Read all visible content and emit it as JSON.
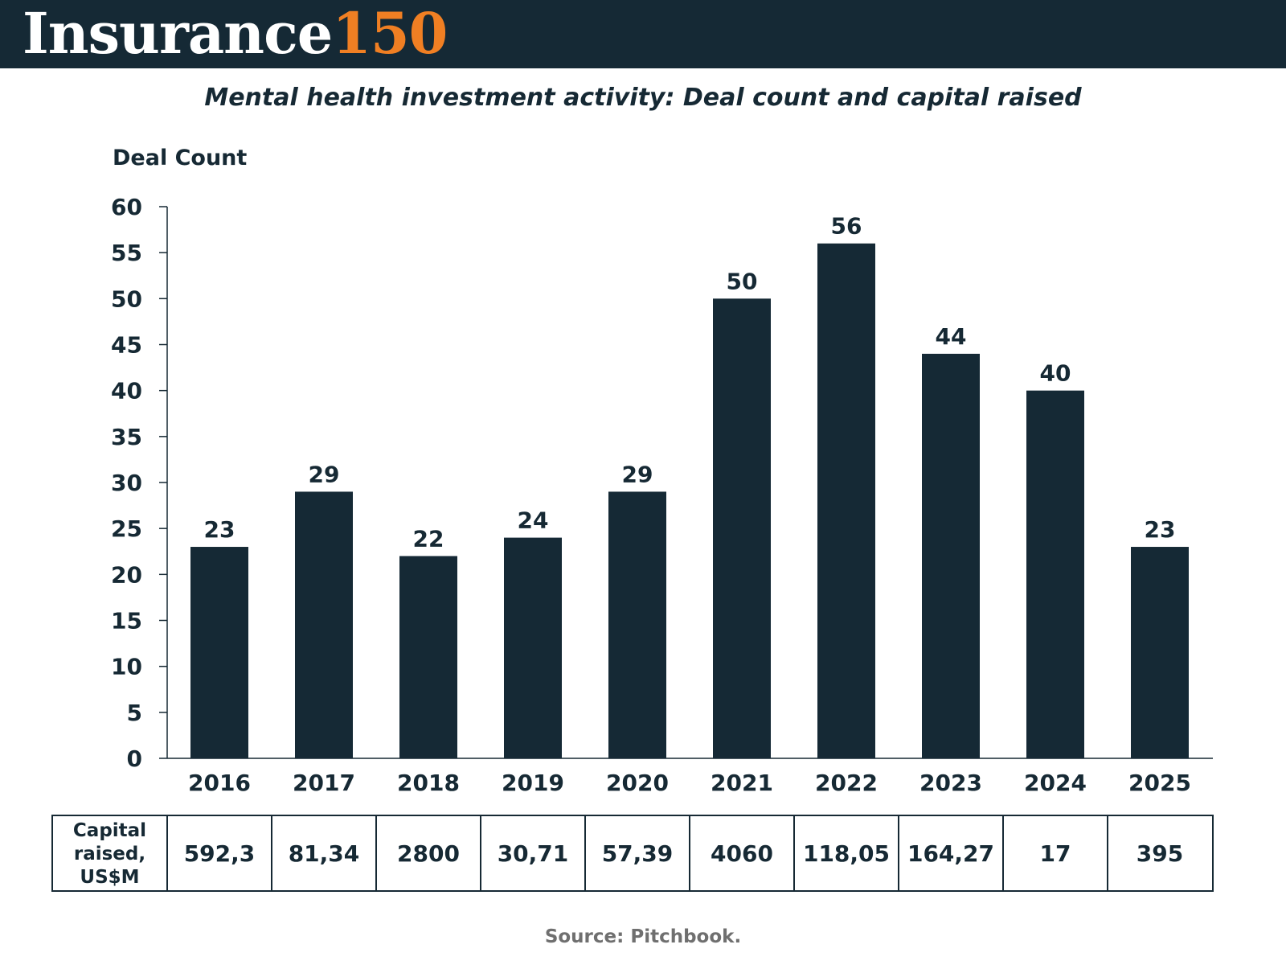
{
  "header": {
    "logo_word": "Insurance",
    "logo_number": "150",
    "background_color": "#152935",
    "accent_color": "#f07f23"
  },
  "chart_data": {
    "type": "bar",
    "title": "Mental health investment activity: Deal count and capital raised",
    "ylabel": "Deal Count",
    "xlabel": "",
    "ylim": [
      0,
      60
    ],
    "yticks": [
      0,
      5,
      10,
      15,
      20,
      25,
      30,
      35,
      40,
      45,
      50,
      55,
      60
    ],
    "grid": false,
    "legend": "none",
    "bar_color": "#152935",
    "categories": [
      "2016",
      "2017",
      "2018",
      "2019",
      "2020",
      "2021",
      "2022",
      "2023",
      "2024",
      "2025"
    ],
    "values": [
      23,
      29,
      22,
      24,
      29,
      50,
      56,
      44,
      40,
      23
    ],
    "table": {
      "row_label_lines": [
        "Capital",
        "raised,",
        "US$M"
      ],
      "values": [
        "592,3",
        "81,34",
        "2800",
        "30,71",
        "57,39",
        "4060",
        "118,05",
        "164,27",
        "17",
        "395"
      ]
    }
  },
  "source": "Source: Pitchbook."
}
